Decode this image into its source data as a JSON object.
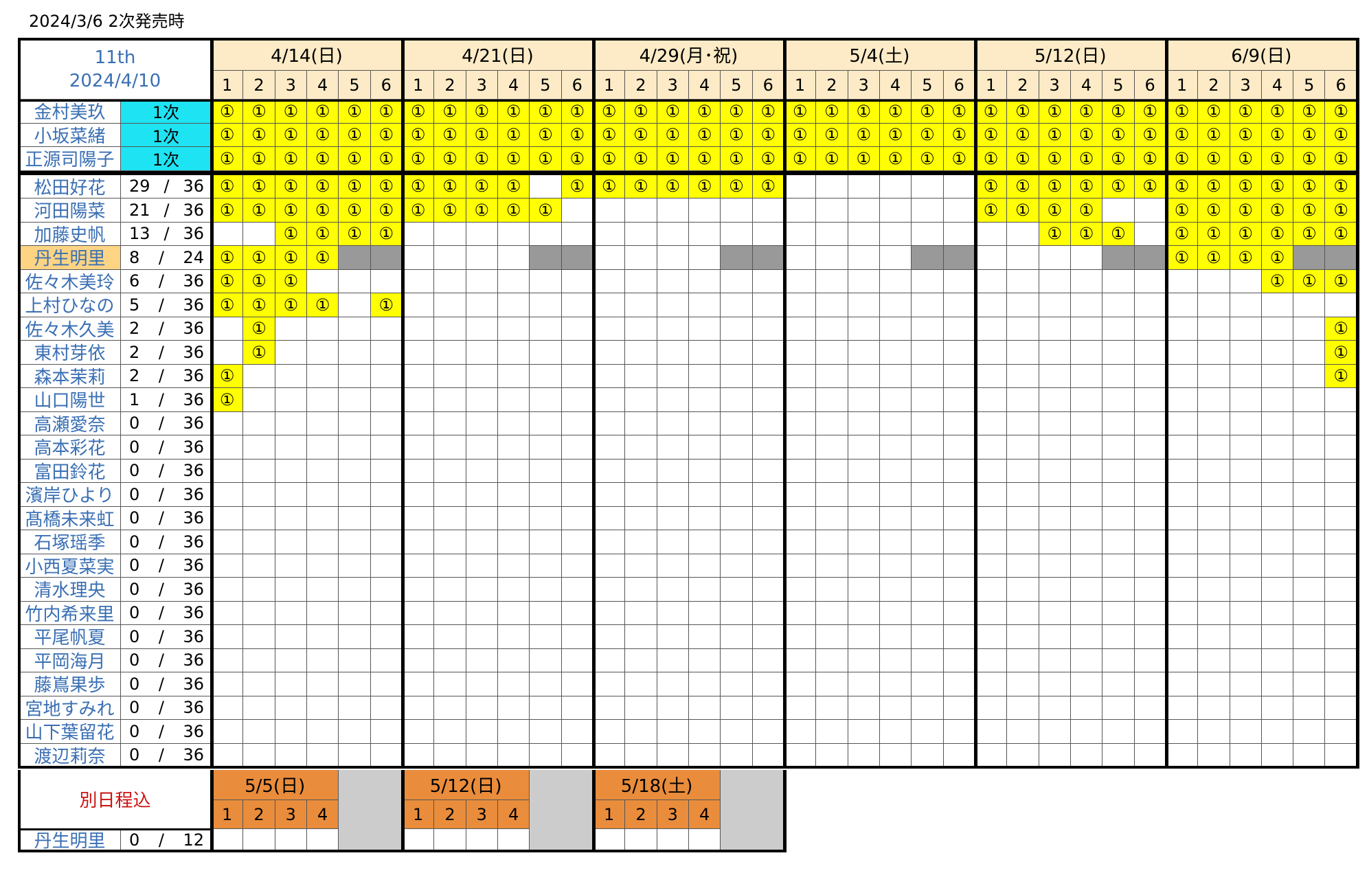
{
  "page_title": "2024/3/6 2次発売時",
  "corner": {
    "line1": "11th",
    "line2": "2024/4/10"
  },
  "slot_labels": [
    "1",
    "2",
    "3",
    "4",
    "5",
    "6"
  ],
  "mark_symbol": "①",
  "dates": [
    "4/14(日)",
    "4/21(日)",
    "4/29(月･祝)",
    "5/4(土)",
    "5/12(日)",
    "6/9(日)"
  ],
  "tier_members": [
    {
      "name": "金村美玖",
      "tier": "1次"
    },
    {
      "name": "小坂菜緒",
      "tier": "1次"
    },
    {
      "name": "正源司陽子",
      "tier": "1次"
    }
  ],
  "members": [
    {
      "name": "松田好花",
      "sold": "29",
      "total": "36",
      "highlight": false,
      "slots": "111111|1111_1|111111|______|111111|111111"
    },
    {
      "name": "河田陽菜",
      "sold": "21",
      "total": "36",
      "highlight": false,
      "slots": "111111|11111_|______|______|1111__|111111"
    },
    {
      "name": "加藤史帆",
      "sold": "13",
      "total": "36",
      "highlight": false,
      "slots": "__1111|______|______|______|__111_|111111"
    },
    {
      "name": "丹生明里",
      "sold": "8",
      "total": "24",
      "highlight": true,
      "slots": "1111XX|____XX|____XX|____XX|____XX|1111XX"
    },
    {
      "name": "佐々木美玲",
      "sold": "6",
      "total": "36",
      "highlight": false,
      "slots": "111___|______|______|______|______|___111"
    },
    {
      "name": "上村ひなの",
      "sold": "5",
      "total": "36",
      "highlight": false,
      "slots": "1111_1|______|______|______|______|______"
    },
    {
      "name": "佐々木久美",
      "sold": "2",
      "total": "36",
      "highlight": false,
      "slots": "_1____|______|______|______|______|_____1"
    },
    {
      "name": "東村芽依",
      "sold": "2",
      "total": "36",
      "highlight": false,
      "slots": "_1____|______|______|______|______|_____1"
    },
    {
      "name": "森本茉莉",
      "sold": "2",
      "total": "36",
      "highlight": false,
      "slots": "1_____|______|______|______|______|_____1"
    },
    {
      "name": "山口陽世",
      "sold": "1",
      "total": "36",
      "highlight": false,
      "slots": "1_____|______|______|______|______|______"
    },
    {
      "name": "高瀬愛奈",
      "sold": "0",
      "total": "36",
      "highlight": false,
      "slots": ""
    },
    {
      "name": "高本彩花",
      "sold": "0",
      "total": "36",
      "highlight": false,
      "slots": ""
    },
    {
      "name": "富田鈴花",
      "sold": "0",
      "total": "36",
      "highlight": false,
      "slots": ""
    },
    {
      "name": "濱岸ひより",
      "sold": "0",
      "total": "36",
      "highlight": false,
      "slots": ""
    },
    {
      "name": "髙橋未来虹",
      "sold": "0",
      "total": "36",
      "highlight": false,
      "slots": ""
    },
    {
      "name": "石塚瑶季",
      "sold": "0",
      "total": "36",
      "highlight": false,
      "slots": ""
    },
    {
      "name": "小西夏菜実",
      "sold": "0",
      "total": "36",
      "highlight": false,
      "slots": ""
    },
    {
      "name": "清水理央",
      "sold": "0",
      "total": "36",
      "highlight": false,
      "slots": ""
    },
    {
      "name": "竹内希来里",
      "sold": "0",
      "total": "36",
      "highlight": false,
      "slots": ""
    },
    {
      "name": "平尾帆夏",
      "sold": "0",
      "total": "36",
      "highlight": false,
      "slots": ""
    },
    {
      "name": "平岡海月",
      "sold": "0",
      "total": "36",
      "highlight": false,
      "slots": ""
    },
    {
      "name": "藤嶌果歩",
      "sold": "0",
      "total": "36",
      "highlight": false,
      "slots": ""
    },
    {
      "name": "宮地すみれ",
      "sold": "0",
      "total": "36",
      "highlight": false,
      "slots": ""
    },
    {
      "name": "山下葉留花",
      "sold": "0",
      "total": "36",
      "highlight": false,
      "slots": ""
    },
    {
      "name": "渡辺莉奈",
      "sold": "0",
      "total": "36",
      "highlight": false,
      "slots": ""
    }
  ],
  "separate": {
    "label": "別日程込",
    "dates": [
      "5/5(日)",
      "5/12(日)",
      "5/18(土)"
    ],
    "slot_labels": [
      "1",
      "2",
      "3",
      "4"
    ],
    "member": {
      "name": "丹生明里",
      "sold": "0",
      "total": "12"
    }
  },
  "colors": {
    "sold": "#ffff00",
    "unavailable": "#999999",
    "header": "#fcebc6",
    "tier": "#1ee3f2",
    "name_text": "#3a6fb3",
    "separate_header": "#e98c3b",
    "separate_label": "#cc1111"
  }
}
